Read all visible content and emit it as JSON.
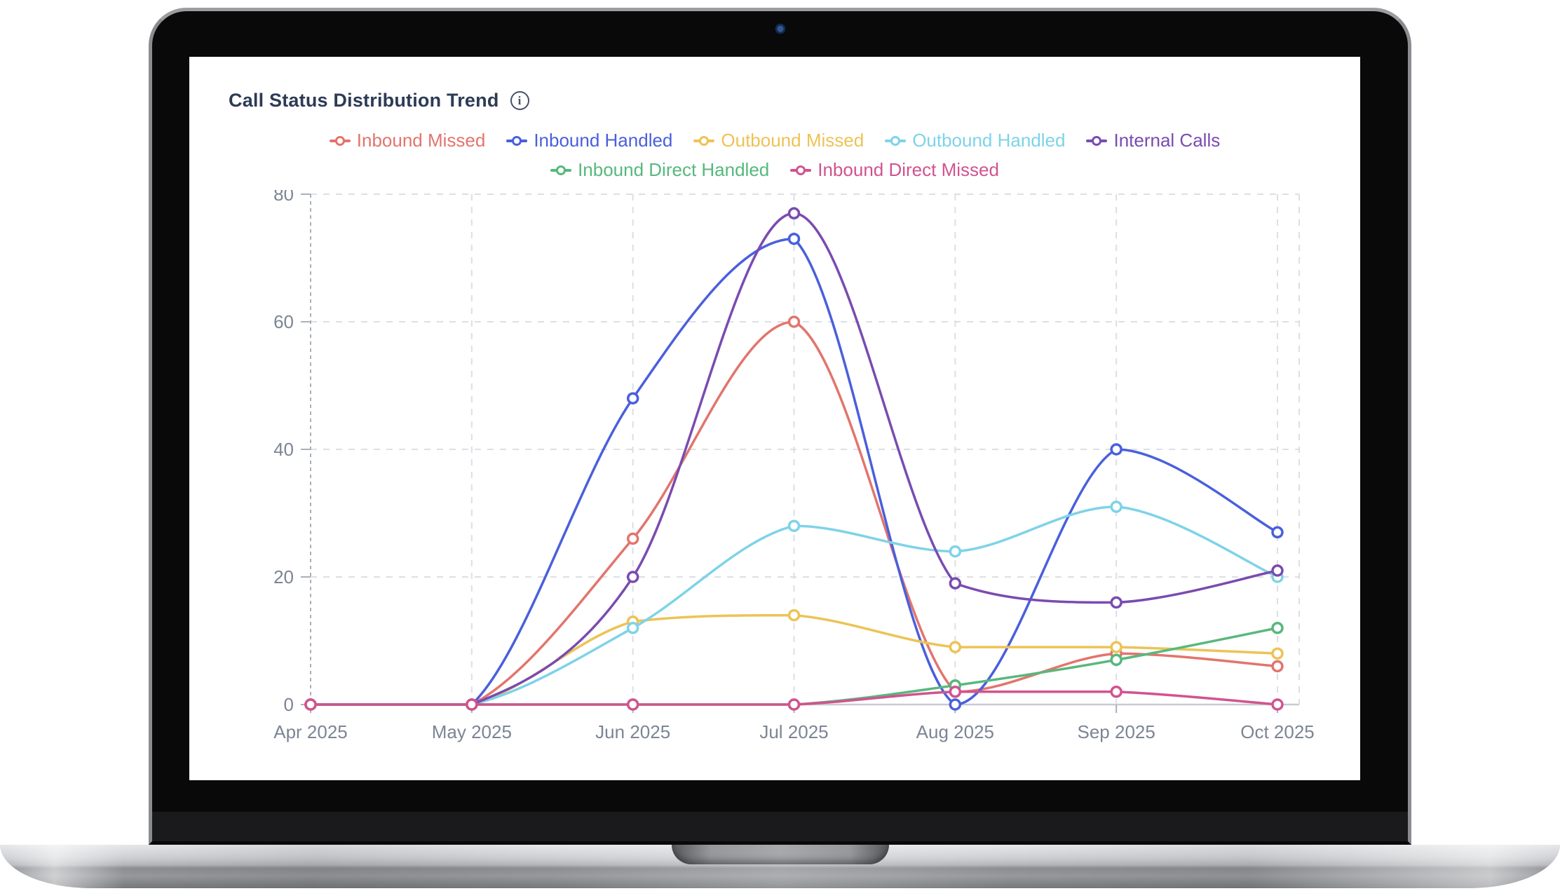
{
  "chart": {
    "title": "Call Status Distribution Trend",
    "info_glyph": "i"
  },
  "chart_data": {
    "type": "line",
    "smooth": true,
    "grid": true,
    "legend_position": "top",
    "title": "Call Status Distribution Trend",
    "categories": [
      "Apr 2025",
      "May 2025",
      "Jun 2025",
      "Jul 2025",
      "Aug 2025",
      "Sep 2025",
      "Oct 2025"
    ],
    "xlabel": "",
    "ylabel": "",
    "ylim": [
      0,
      80
    ],
    "yticks": [
      0,
      20,
      40,
      60,
      80
    ],
    "legend_rows": [
      5,
      2
    ],
    "series": [
      {
        "name": "Inbound Missed",
        "color": "#e2756d",
        "values": [
          0,
          0,
          26,
          60,
          2,
          8,
          6
        ]
      },
      {
        "name": "Inbound Handled",
        "color": "#4a5fdc",
        "values": [
          0,
          0,
          48,
          73,
          0,
          40,
          27
        ]
      },
      {
        "name": "Outbound Missed",
        "color": "#ecc356",
        "values": [
          0,
          0,
          13,
          14,
          9,
          9,
          8
        ]
      },
      {
        "name": "Outbound Handled",
        "color": "#7ed3e8",
        "values": [
          0,
          0,
          12,
          28,
          24,
          31,
          20
        ]
      },
      {
        "name": "Internal Calls",
        "color": "#7a4bb0",
        "values": [
          0,
          0,
          20,
          77,
          19,
          16,
          21
        ]
      },
      {
        "name": "Inbound Direct Handled",
        "color": "#57b87c",
        "values": [
          0,
          0,
          0,
          0,
          3,
          7,
          12
        ]
      },
      {
        "name": "Inbound Direct Missed",
        "color": "#d1538f",
        "values": [
          0,
          0,
          0,
          0,
          2,
          2,
          0
        ]
      }
    ],
    "axis_colors": {
      "grid_line": "#dcdfe4",
      "axis_line": "#c7cbd1",
      "tick": "#aab0b8",
      "label": "#7c8594"
    }
  }
}
